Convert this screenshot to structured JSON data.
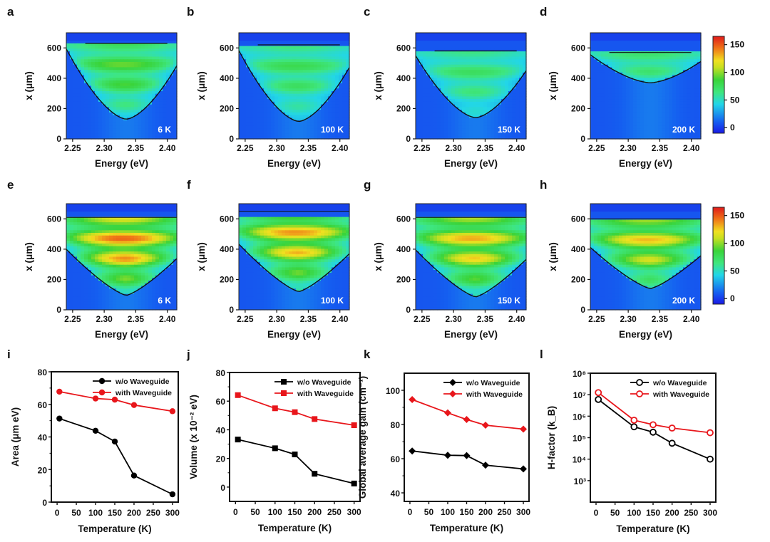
{
  "figure": {
    "colorbar": {
      "ticks": [
        0,
        50,
        100,
        150
      ],
      "range": [
        -10,
        165
      ]
    },
    "heatmap_axes": {
      "xlabel": "Energy (eV)",
      "ylabel": "x (μm)",
      "xticks": [
        "2.25",
        "2.30",
        "2.35",
        "2.40"
      ],
      "xlim": [
        2.24,
        2.415
      ],
      "yticks": [
        "0",
        "200",
        "400",
        "600"
      ],
      "ylim": [
        0,
        700
      ]
    }
  },
  "chart_data": [
    {
      "panel": "a",
      "type": "heatmap",
      "title": "6 K",
      "group": "w/o Waveguide",
      "xlabel": "Energy (eV)",
      "ylabel": "x (μm)",
      "xlim": [
        2.24,
        2.415
      ],
      "ylim": [
        0,
        700
      ],
      "peak_intensity": 95,
      "contour_bottom_um": 130,
      "contour_top_um": 630
    },
    {
      "panel": "b",
      "type": "heatmap",
      "title": "100 K",
      "group": "w/o Waveguide",
      "xlabel": "Energy (eV)",
      "ylabel": "x (μm)",
      "xlim": [
        2.24,
        2.415
      ],
      "ylim": [
        0,
        700
      ],
      "peak_intensity": 80,
      "contour_bottom_um": 115,
      "contour_top_um": 620
    },
    {
      "panel": "c",
      "type": "heatmap",
      "title": "150 K",
      "group": "w/o Waveguide",
      "xlabel": "Energy (eV)",
      "ylabel": "x (μm)",
      "xlim": [
        2.24,
        2.415
      ],
      "ylim": [
        0,
        700
      ],
      "peak_intensity": 75,
      "contour_bottom_um": 140,
      "contour_top_um": 580
    },
    {
      "panel": "d",
      "type": "heatmap",
      "title": "200 K",
      "group": "w/o Waveguide",
      "xlabel": "Energy (eV)",
      "ylabel": "x (μm)",
      "xlim": [
        2.24,
        2.415
      ],
      "ylim": [
        0,
        700
      ],
      "peak_intensity": 80,
      "contour_bottom_um": 370,
      "contour_top_um": 570
    },
    {
      "panel": "e",
      "type": "heatmap",
      "title": "6 K",
      "group": "with Waveguide",
      "xlabel": "Energy (eV)",
      "ylabel": "x (μm)",
      "xlim": [
        2.24,
        2.415
      ],
      "ylim": [
        0,
        700
      ],
      "peak_intensity": 150,
      "contour_bottom_um": 95,
      "contour_top_um": 610
    },
    {
      "panel": "f",
      "type": "heatmap",
      "title": "100 K",
      "group": "with Waveguide",
      "xlabel": "Energy (eV)",
      "ylabel": "x (μm)",
      "xlim": [
        2.24,
        2.415
      ],
      "ylim": [
        0,
        700
      ],
      "peak_intensity": 140,
      "contour_bottom_um": 120,
      "contour_top_um": 650
    },
    {
      "panel": "g",
      "type": "heatmap",
      "title": "150 K",
      "group": "with Waveguide",
      "xlabel": "Energy (eV)",
      "ylabel": "x (μm)",
      "xlim": [
        2.24,
        2.415
      ],
      "ylim": [
        0,
        700
      ],
      "peak_intensity": 135,
      "contour_bottom_um": 85,
      "contour_top_um": 610
    },
    {
      "panel": "h",
      "type": "heatmap",
      "title": "200 K",
      "group": "with Waveguide",
      "xlabel": "Energy (eV)",
      "ylabel": "x (μm)",
      "xlim": [
        2.24,
        2.415
      ],
      "ylim": [
        0,
        700
      ],
      "peak_intensity": 130,
      "contour_bottom_um": 140,
      "contour_top_um": 600
    },
    {
      "panel": "i",
      "type": "line",
      "xlabel": "Temperature (K)",
      "ylabel": "Area (μm eV)",
      "x": [
        6,
        100,
        150,
        200,
        300
      ],
      "xlim": [
        -15,
        315
      ],
      "ylim": [
        0,
        80
      ],
      "xticks": [
        0,
        50,
        100,
        150,
        200,
        250,
        300
      ],
      "yticks": [
        0,
        20,
        40,
        60,
        80
      ],
      "legend": "top-right",
      "marker": "circle",
      "scale": "linear",
      "series": [
        {
          "name": "w/o Waveguide",
          "color": "#000000",
          "values": [
            51.3,
            43.8,
            37.2,
            16.3,
            4.8
          ]
        },
        {
          "name": "with Waveguide",
          "color": "#e8161b",
          "values": [
            67.8,
            63.6,
            62.9,
            59.6,
            55.8
          ]
        }
      ]
    },
    {
      "panel": "j",
      "type": "line",
      "xlabel": "Temperature (K)",
      "ylabel": "Volume (x 10⁻² eV)",
      "x": [
        6,
        100,
        150,
        200,
        300
      ],
      "xlim": [
        -15,
        315
      ],
      "ylim": [
        -10,
        80
      ],
      "xticks": [
        0,
        50,
        100,
        150,
        200,
        250,
        300
      ],
      "yticks": [
        0,
        20,
        40,
        60,
        80
      ],
      "legend": "top-right",
      "marker": "square",
      "scale": "linear",
      "series": [
        {
          "name": "w/o Waveguide",
          "color": "#000000",
          "values": [
            33.2,
            27.1,
            22.8,
            9.3,
            2.5
          ]
        },
        {
          "name": "with Waveguide",
          "color": "#e8161b",
          "values": [
            64.2,
            55.0,
            52.3,
            47.5,
            43.2
          ]
        }
      ]
    },
    {
      "panel": "k",
      "type": "line",
      "xlabel": "Temperature (K)",
      "ylabel": "Global average gain (cm⁻¹)",
      "x": [
        6,
        100,
        150,
        200,
        300
      ],
      "xlim": [
        -15,
        315
      ],
      "ylim": [
        35,
        110
      ],
      "xticks": [
        0,
        50,
        100,
        150,
        200,
        250,
        300
      ],
      "yticks": [
        40,
        60,
        80,
        100
      ],
      "legend": "top-right",
      "marker": "diamond",
      "scale": "linear",
      "series": [
        {
          "name": "w/o Waveguide",
          "color": "#000000",
          "values": [
            64.5,
            62.0,
            61.8,
            56.2,
            54.0
          ]
        },
        {
          "name": "with Waveguide",
          "color": "#e8161b",
          "values": [
            94.6,
            86.8,
            82.9,
            79.6,
            77.3
          ]
        }
      ]
    },
    {
      "panel": "l",
      "type": "line",
      "xlabel": "Temperature (K)",
      "ylabel": "H-factor (k_B)",
      "x": [
        6,
        100,
        150,
        200,
        300
      ],
      "xlim": [
        -15,
        315
      ],
      "ylim": [
        100,
        100000000
      ],
      "xticks": [
        0,
        50,
        100,
        150,
        200,
        250,
        300
      ],
      "yticks": [
        1000,
        10000,
        100000,
        1000000,
        10000000,
        100000000
      ],
      "ytick_labels": [
        "10³",
        "10⁴",
        "10⁵",
        "10⁶",
        "10⁷",
        "10⁸"
      ],
      "legend": "top-right",
      "marker": "open-circle",
      "scale": "log",
      "series": [
        {
          "name": "w/o Waveguide",
          "color": "#000000",
          "values": [
            6000000,
            320000,
            180000,
            55000,
            10000
          ]
        },
        {
          "name": "with Waveguide",
          "color": "#e8161b",
          "values": [
            12500000,
            650000,
            400000,
            280000,
            170000
          ]
        }
      ]
    }
  ]
}
